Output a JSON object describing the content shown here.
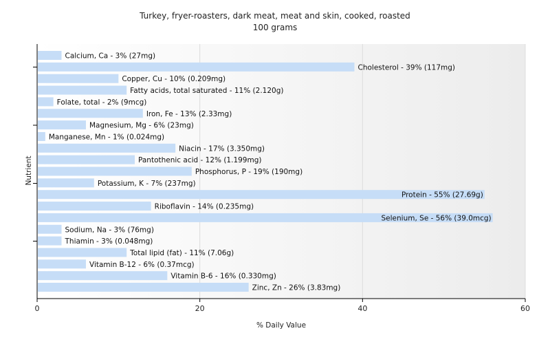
{
  "chart_data": {
    "type": "bar",
    "orientation": "horizontal",
    "title": "Turkey, fryer-roasters, dark meat, meat and skin, cooked, roasted",
    "subtitle": "100 grams",
    "xlabel": "% Daily Value",
    "ylabel": "Nutrient",
    "xlim": [
      0,
      60
    ],
    "xticks": [
      0,
      20,
      40,
      60
    ],
    "grid": true,
    "bar_color": "#c6ddf7",
    "categories": [
      "Calcium, Ca",
      "Cholesterol",
      "Copper, Cu",
      "Fatty acids, total saturated",
      "Folate, total",
      "Iron, Fe",
      "Magnesium, Mg",
      "Manganese, Mn",
      "Niacin",
      "Pantothenic acid",
      "Phosphorus, P",
      "Potassium, K",
      "Protein",
      "Riboflavin",
      "Selenium, Se",
      "Sodium, Na",
      "Thiamin",
      "Total lipid (fat)",
      "Vitamin B-12",
      "Vitamin B-6",
      "Zinc, Zn"
    ],
    "values": [
      3,
      39,
      10,
      11,
      2,
      13,
      6,
      1,
      17,
      12,
      19,
      7,
      55,
      14,
      56,
      3,
      3,
      11,
      6,
      16,
      26
    ],
    "labels": [
      "Calcium, Ca - 3% (27mg)",
      "Cholesterol - 39% (117mg)",
      "Copper, Cu - 10% (0.209mg)",
      "Fatty acids, total saturated - 11% (2.120g)",
      "Folate, total - 2% (9mcg)",
      "Iron, Fe - 13% (2.33mg)",
      "Magnesium, Mg - 6% (23mg)",
      "Manganese, Mn - 1% (0.024mg)",
      "Niacin - 17% (3.350mg)",
      "Pantothenic acid - 12% (1.199mg)",
      "Phosphorus, P - 19% (190mg)",
      "Potassium, K - 7% (237mg)",
      "Protein - 55% (27.69g)",
      "Riboflavin - 14% (0.235mg)",
      "Selenium, Se - 56% (39.0mcg)",
      "Sodium, Na - 3% (76mg)",
      "Thiamin - 3% (0.048mg)",
      "Total lipid (fat) - 11% (7.06g)",
      "Vitamin B-12 - 6% (0.37mcg)",
      "Vitamin B-6 - 16% (0.330mg)",
      "Zinc, Zn - 26% (3.83mg)"
    ]
  }
}
